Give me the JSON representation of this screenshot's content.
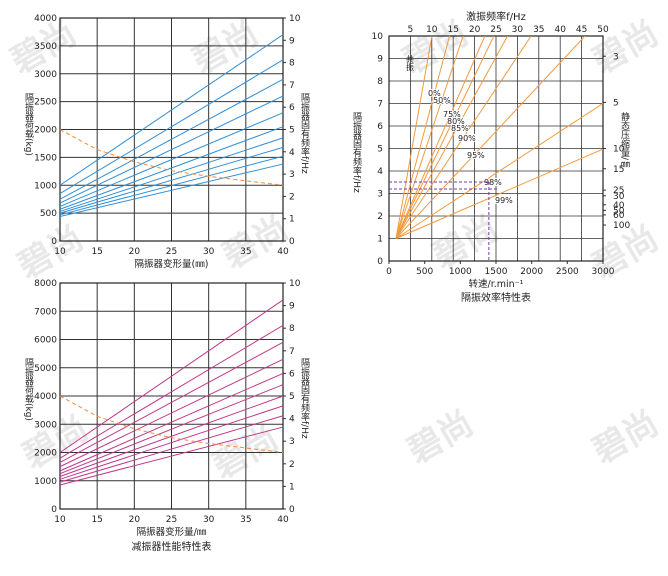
{
  "watermark": "碧尚",
  "chart_data": [
    {
      "type": "line",
      "xlabel": "隔振器变形量(㎜)",
      "ylabel": "隔振器荷载(kg)",
      "y2label": "隔振器固有频率f/Hz",
      "xlim": [
        10,
        40
      ],
      "ylim": [
        0,
        4000
      ],
      "y2lim": [
        0,
        10
      ],
      "x_ticks": [
        "10",
        "15",
        "20",
        "25",
        "30",
        "35",
        "40"
      ],
      "y_ticks": [
        "0",
        "500",
        "1000",
        "1500",
        "2000",
        "2500",
        "3000",
        "3500",
        "4000"
      ],
      "y2_ticks": [
        "0",
        "1",
        "2",
        "3",
        "4",
        "5",
        "6",
        "7",
        "8",
        "9",
        "10"
      ],
      "grid": true,
      "line_color": "#2f8fd6",
      "curve_color": "#f08a3c",
      "series": [
        {
          "x": [
            10,
            40
          ],
          "y": [
            1000,
            3700
          ]
        },
        {
          "x": [
            10,
            40
          ],
          "y": [
            850,
            3250
          ]
        },
        {
          "x": [
            10,
            40
          ],
          "y": [
            750,
            2900
          ]
        },
        {
          "x": [
            10,
            40
          ],
          "y": [
            680,
            2600
          ]
        },
        {
          "x": [
            10,
            40
          ],
          "y": [
            620,
            2300
          ]
        },
        {
          "x": [
            10,
            40
          ],
          "y": [
            570,
            2050
          ]
        },
        {
          "x": [
            10,
            40
          ],
          "y": [
            530,
            1850
          ]
        },
        {
          "x": [
            10,
            40
          ],
          "y": [
            500,
            1680
          ]
        },
        {
          "x": [
            10,
            40
          ],
          "y": [
            470,
            1520
          ]
        },
        {
          "x": [
            10,
            40
          ],
          "y": [
            440,
            1380
          ]
        }
      ],
      "freq_curve": {
        "x": [
          10,
          15,
          20,
          25,
          30,
          35,
          40
        ],
        "y2": [
          5.0,
          4.1,
          3.55,
          3.15,
          2.9,
          2.7,
          2.5
        ]
      }
    },
    {
      "type": "line",
      "xlabel": "隔振器变形量/㎜",
      "ylabel": "隔振器荷载(kg)",
      "y2label": "隔振器固有频率f/Hz",
      "caption": "减振器性能特性表",
      "xlim": [
        10,
        40
      ],
      "ylim": [
        0,
        8000
      ],
      "y2lim": [
        0,
        10
      ],
      "x_ticks": [
        "10",
        "15",
        "20",
        "25",
        "30",
        "35",
        "40"
      ],
      "y_ticks": [
        "0",
        "1000",
        "2000",
        "3000",
        "4000",
        "5000",
        "6000",
        "7000",
        "8000"
      ],
      "y2_ticks": [
        "0",
        "1",
        "2",
        "3",
        "4",
        "5",
        "6",
        "7",
        "8",
        "9",
        "10"
      ],
      "grid": true,
      "line_color": "#c0388a",
      "curve_color": "#f08a3c",
      "series": [
        {
          "x": [
            10,
            40
          ],
          "y": [
            2000,
            7400
          ]
        },
        {
          "x": [
            10,
            40
          ],
          "y": [
            1800,
            6500
          ]
        },
        {
          "x": [
            10,
            40
          ],
          "y": [
            1650,
            5900
          ]
        },
        {
          "x": [
            10,
            40
          ],
          "y": [
            1500,
            5300
          ]
        },
        {
          "x": [
            10,
            40
          ],
          "y": [
            1350,
            4800
          ]
        },
        {
          "x": [
            10,
            40
          ],
          "y": [
            1250,
            4400
          ]
        },
        {
          "x": [
            10,
            40
          ],
          "y": [
            1150,
            4000
          ]
        },
        {
          "x": [
            10,
            40
          ],
          "y": [
            1050,
            3650
          ]
        },
        {
          "x": [
            10,
            40
          ],
          "y": [
            950,
            3300
          ]
        },
        {
          "x": [
            10,
            40
          ],
          "y": [
            850,
            2900
          ]
        }
      ],
      "freq_curve": {
        "x": [
          10,
          15,
          20,
          25,
          30,
          35,
          40
        ],
        "y2": [
          5.0,
          4.1,
          3.55,
          3.15,
          2.9,
          2.7,
          2.5
        ]
      }
    },
    {
      "type": "line",
      "caption": "隔振效率特性表",
      "xlabel": "转速/r.min⁻¹",
      "ylabel": "隔振器固有频率f/Hz",
      "x2label": "激振频率f/Hz",
      "y2label": "静态压缩量/㎜",
      "xlim": [
        0,
        3000
      ],
      "ylim": [
        0,
        10
      ],
      "x_ticks": [
        "0",
        "500",
        "1000",
        "1500",
        "2000",
        "2500",
        "3000"
      ],
      "y_ticks": [
        "0",
        "1",
        "2",
        "3",
        "4",
        "5",
        "6",
        "7",
        "8",
        "9",
        "10"
      ],
      "x2_ticks": [
        "5",
        "10",
        "15",
        "20",
        "25",
        "30",
        "35",
        "40",
        "45",
        "50"
      ],
      "y2_ticks": [
        {
          "label": "3",
          "f": 9.1
        },
        {
          "label": "5",
          "f": 7.05
        },
        {
          "label": "10",
          "f": 5.0
        },
        {
          "label": "15",
          "f": 4.1
        },
        {
          "label": "25",
          "f": 3.15
        },
        {
          "label": "30",
          "f": 2.9
        },
        {
          "label": "40",
          "f": 2.5
        },
        {
          "label": "50",
          "f": 2.25
        },
        {
          "label": "60",
          "f": 2.05
        },
        {
          "label": "100",
          "f": 1.6
        }
      ],
      "line_color": "#f39a3e",
      "resonance_label": "共振",
      "efficiency_lines": [
        {
          "label": "0%",
          "ratio": 1.414
        },
        {
          "label": "50%",
          "ratio": 1.73
        },
        {
          "label": "75%",
          "ratio": 2.24
        },
        {
          "label": "80%",
          "ratio": 2.45
        },
        {
          "label": "85%",
          "ratio": 2.77
        },
        {
          "label": "90%",
          "ratio": 3.32
        },
        {
          "label": "95%",
          "ratio": 4.58
        },
        {
          "label": "98%",
          "ratio": 7.14
        },
        {
          "label": "99%",
          "ratio": 10.05
        }
      ],
      "example": {
        "rpm": 1400,
        "f": 3.2
      }
    }
  ]
}
